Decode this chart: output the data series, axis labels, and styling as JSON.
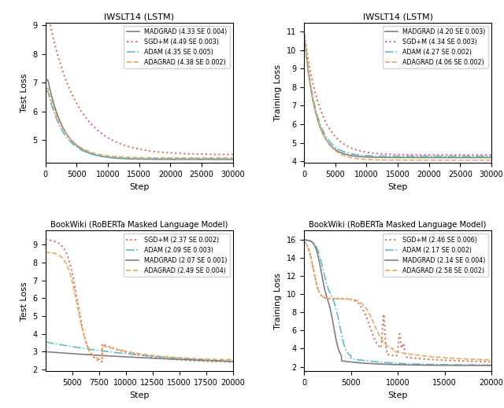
{
  "top_left": {
    "title": "IWSLT14 (LSTM)",
    "ylabel": "Test Loss",
    "xlabel": "Step",
    "xlim": [
      0,
      30000
    ],
    "xticks": [
      0,
      5000,
      10000,
      15000,
      20000,
      25000,
      30000
    ],
    "ylim": [
      4.2,
      9.1
    ],
    "legend": [
      {
        "label": "MADGRAD (4.33 SE 0.004)",
        "color": "#7f7f7f",
        "linestyle": "-",
        "lw": 1.2
      },
      {
        "label": "SGD+M (4.49 SE 0.003)",
        "color": "#e07060",
        "linestyle": ":",
        "lw": 1.5
      },
      {
        "label": "ADAM (4.35 SE 0.005)",
        "color": "#5bbccc",
        "linestyle": "-.",
        "lw": 1.2
      },
      {
        "label": "ADAGRAD (4.38 SE 0.002)",
        "color": "#e8a860",
        "linestyle": "--",
        "lw": 1.2
      }
    ]
  },
  "top_right": {
    "title": "IWSLT14 (LSTM)",
    "ylabel": "Training Loss",
    "xlabel": "Step",
    "xlim": [
      0,
      30000
    ],
    "xticks": [
      0,
      5000,
      10000,
      15000,
      20000,
      25000,
      30000
    ],
    "ylim": [
      3.9,
      11.5
    ],
    "legend": [
      {
        "label": "MADGRAD (4.20 SE 0.003)",
        "color": "#7f7f7f",
        "linestyle": "-",
        "lw": 1.2
      },
      {
        "label": "SGD+M (4.34 SE 0.003)",
        "color": "#e07060",
        "linestyle": ":",
        "lw": 1.5
      },
      {
        "label": "ADAM (4.27 SE 0.002)",
        "color": "#5bbccc",
        "linestyle": "-.",
        "lw": 1.2
      },
      {
        "label": "ADAGRAD (4.06 SE 0.002)",
        "color": "#e8a860",
        "linestyle": "--",
        "lw": 1.2
      }
    ]
  },
  "bottom_left": {
    "title": "BookWiki (RoBERTa Masked Language Model)",
    "ylabel": "Test Loss",
    "xlabel": "Step",
    "xlim": [
      2500,
      20000
    ],
    "xticks": [
      5000,
      7500,
      10000,
      12500,
      15000,
      17500,
      20000
    ],
    "ylim": [
      1.9,
      9.8
    ],
    "legend": [
      {
        "label": "SGD+M (2.37 SE 0.002)",
        "color": "#e07060",
        "linestyle": ":",
        "lw": 1.5
      },
      {
        "label": "ADAM (2.09 SE 0.003)",
        "color": "#5bbccc",
        "linestyle": "-.",
        "lw": 1.2
      },
      {
        "label": "MADGRAD (2.07 SE 0.001)",
        "color": "#7f7f7f",
        "linestyle": "-",
        "lw": 1.2
      },
      {
        "label": "ADAGRAD (2.49 SE 0.004)",
        "color": "#e8a860",
        "linestyle": "--",
        "lw": 1.2
      }
    ]
  },
  "bottom_right": {
    "title": "BookWiki (RoBERTa Masked Language Model)",
    "ylabel": "Training Loss",
    "xlabel": "Step",
    "xlim": [
      0,
      20000
    ],
    "xticks": [
      0,
      5000,
      10000,
      15000,
      20000
    ],
    "ylim": [
      1.5,
      17.0
    ],
    "legend": [
      {
        "label": "SGD+M (2.46 SE 0.006)",
        "color": "#e07060",
        "linestyle": ":",
        "lw": 1.5
      },
      {
        "label": "ADAM (2.17 SE 0.002)",
        "color": "#5bbccc",
        "linestyle": "-.",
        "lw": 1.2
      },
      {
        "label": "MADGRAD (2.14 SE 0.004)",
        "color": "#7f7f7f",
        "linestyle": "-",
        "lw": 1.2
      },
      {
        "label": "ADAGRAD (2.58 SE 0.002)",
        "color": "#e8a860",
        "linestyle": "--",
        "lw": 1.2
      }
    ]
  }
}
